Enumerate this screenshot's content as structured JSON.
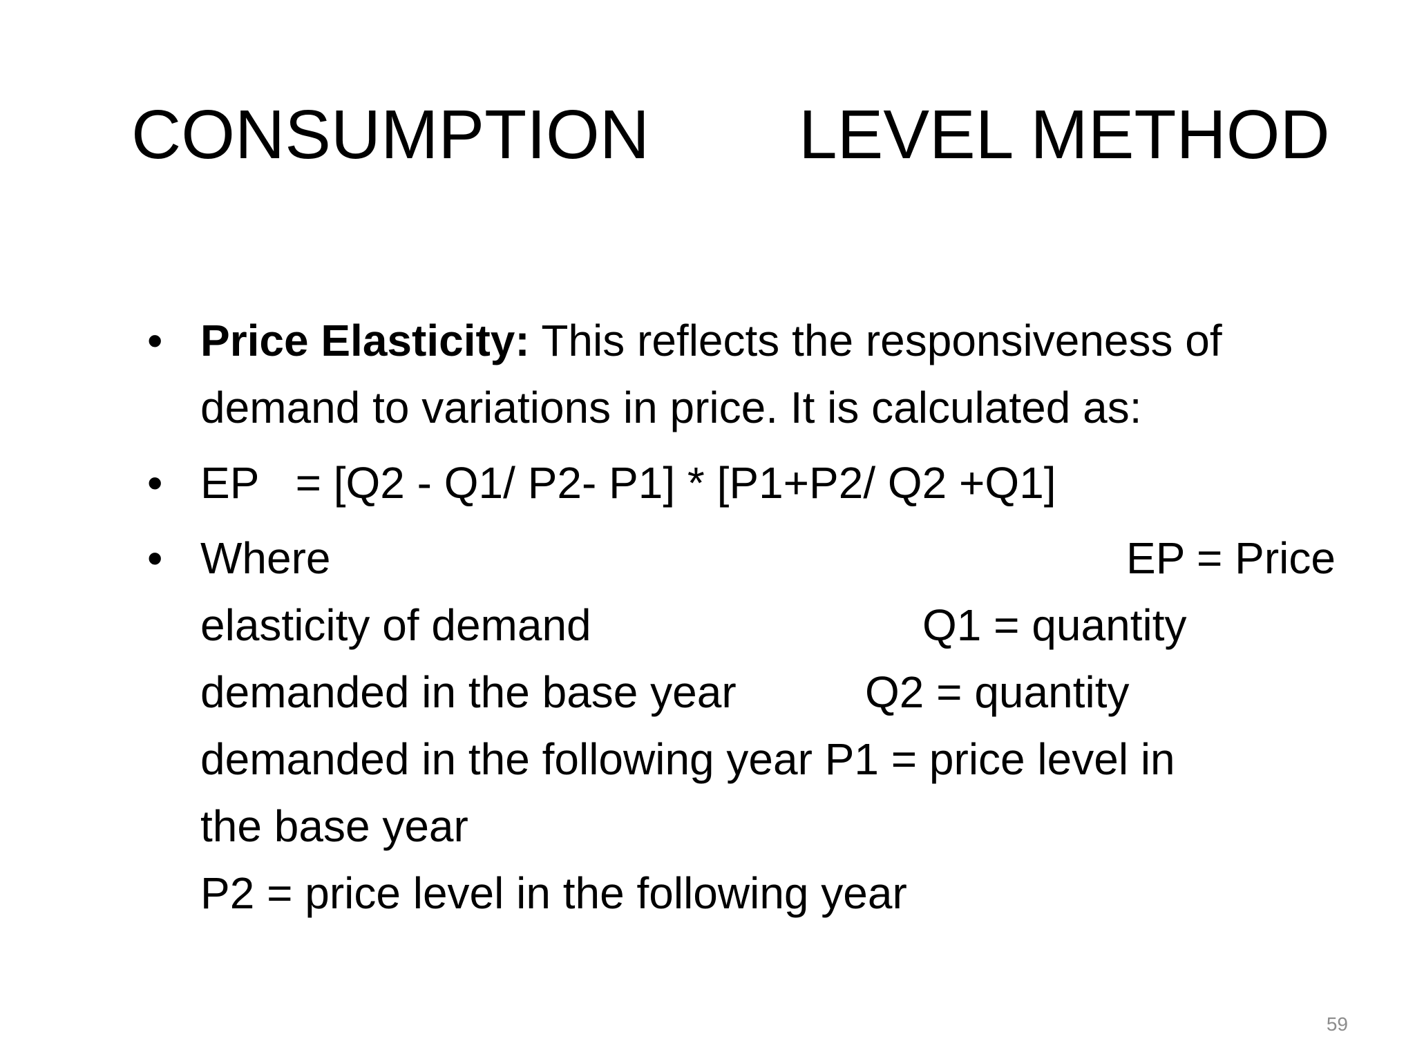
{
  "slide": {
    "title_part_1": "CONSUMPTION",
    "title_part_2": "LEVEL METHOD",
    "bullet_symbol": "•",
    "bullets": [
      {
        "bold_label": "Price Elasticity:",
        "text_line_1": " This reflects the responsiveness of",
        "text_line_2": "demand to variations in price. It is calculated as:"
      },
      {
        "formula": "EP   = [Q2 - Q1/ P2- P1] * [P1+P2/ Q2 +Q1]"
      },
      {
        "line_1_left": "Where",
        "line_1_right": "EP  = Price",
        "line_2_left": "elasticity of demand",
        "line_2_right": "Q1  = quantity",
        "line_3_left": "demanded in the base year",
        "line_3_right": "Q2  = quantity",
        "line_4": "demanded in the following year P1  = price level in",
        "line_5": "the base year",
        "line_6": "P2  = price level in the following year"
      }
    ],
    "page_number": "59"
  }
}
